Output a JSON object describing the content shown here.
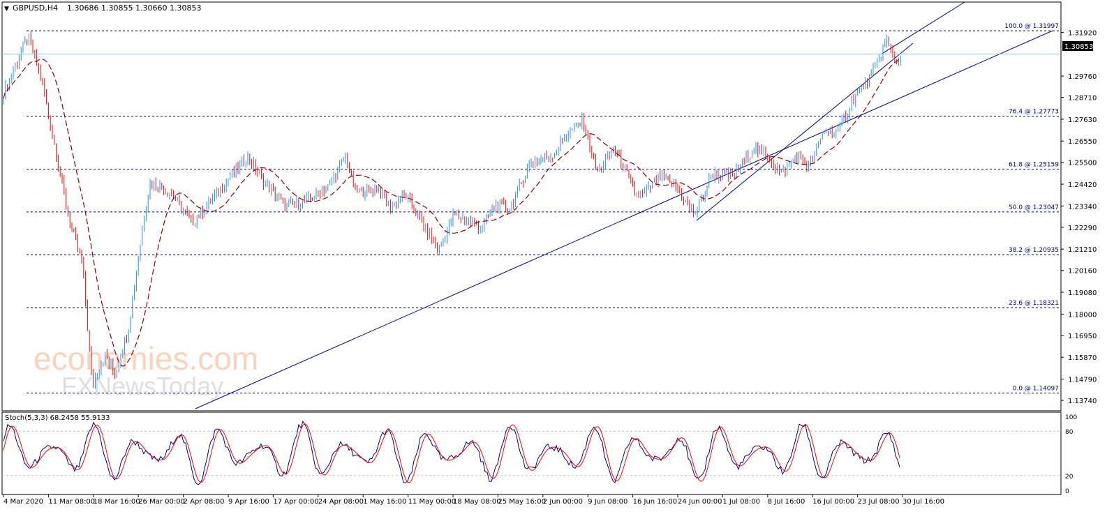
{
  "header": {
    "symbol": "GBPUSD,H4",
    "quote": "1.30686 1.30855 1.30660 1.30853"
  },
  "indicator": {
    "label": "Stoch(5,3,3) 68.2458 55.9133",
    "levels": [
      "100",
      "80",
      "20",
      "0"
    ]
  },
  "watermark": {
    "line1": "economies.com",
    "line2": "FXNewsToday"
  },
  "colors": {
    "background": "#ffffff",
    "bull": "#1f8fff",
    "bear": "#ff0000",
    "ma": "#8b0000",
    "channel": "#000080",
    "fib": "#000080",
    "price_line": "#87ceeb",
    "stoch_main": "#000080",
    "stoch_signal": "#ff0000",
    "text": "#000000"
  },
  "chart_data": [
    {
      "type": "candlestick",
      "symbol": "GBPUSD",
      "timeframe": "H4",
      "y_axis": {
        "min": 1.1374,
        "max": 1.3245,
        "ticks": [
          "1.31920",
          "1.30853",
          "1.29760",
          "1.28710",
          "1.27630",
          "1.26550",
          "1.25500",
          "1.24420",
          "1.23340",
          "1.22290",
          "1.21210",
          "1.20160",
          "1.19080",
          "1.18000",
          "1.16950",
          "1.15870",
          "1.14790",
          "1.13740"
        ]
      },
      "current_price": "1.30853",
      "x_labels": [
        "4 Mar 2020",
        "11 Mar 08:00",
        "18 Mar 16:00",
        "26 Mar 00:00",
        "2 Apr 08:00",
        "9 Apr 16:00",
        "17 Apr 00:00",
        "24 Apr 08:00",
        "1 May 16:00",
        "11 May 00:00",
        "18 May 08:00",
        "25 May 16:00",
        "2 Jun 00:00",
        "9 Jun 08:00",
        "16 Jun 16:00",
        "24 Jun 00:00",
        "1 Jul 08:00",
        "8 Jul 16:00",
        "16 Jul 00:00",
        "23 Jul 08:00",
        "30 Jul 16:00"
      ],
      "fibonacci": [
        {
          "label": "100.0 @ 1.31997",
          "level": 1.31997
        },
        {
          "label": "76.4 @ 1.27773",
          "level": 1.27773
        },
        {
          "label": "61.8 @ 1.25159",
          "level": 1.25159
        },
        {
          "label": "50.0 @ 1.23047",
          "level": 1.23047
        },
        {
          "label": "38.2 @ 1.20935",
          "level": 1.20935
        },
        {
          "label": "23.6 @ 1.18321",
          "level": 1.18321
        },
        {
          "label": "0.0 @ 1.14097",
          "level": 1.14097
        }
      ],
      "anchors": [
        {
          "x": 0,
          "close": 1.285
        },
        {
          "x": 40,
          "close": 1.3175
        },
        {
          "x": 60,
          "close": 1.295
        },
        {
          "x": 80,
          "close": 1.26
        },
        {
          "x": 100,
          "close": 1.225
        },
        {
          "x": 118,
          "close": 1.205
        },
        {
          "x": 132,
          "close": 1.145
        },
        {
          "x": 150,
          "close": 1.16
        },
        {
          "x": 165,
          "close": 1.15
        },
        {
          "x": 185,
          "close": 1.175
        },
        {
          "x": 205,
          "close": 1.225
        },
        {
          "x": 215,
          "close": 1.245
        },
        {
          "x": 245,
          "close": 1.24
        },
        {
          "x": 275,
          "close": 1.225
        },
        {
          "x": 300,
          "close": 1.235
        },
        {
          "x": 330,
          "close": 1.248
        },
        {
          "x": 355,
          "close": 1.258
        },
        {
          "x": 375,
          "close": 1.247
        },
        {
          "x": 410,
          "close": 1.233
        },
        {
          "x": 440,
          "close": 1.236
        },
        {
          "x": 470,
          "close": 1.243
        },
        {
          "x": 495,
          "close": 1.258
        },
        {
          "x": 510,
          "close": 1.24
        },
        {
          "x": 540,
          "close": 1.242
        },
        {
          "x": 560,
          "close": 1.233
        },
        {
          "x": 580,
          "close": 1.239
        },
        {
          "x": 600,
          "close": 1.228
        },
        {
          "x": 628,
          "close": 1.211
        },
        {
          "x": 650,
          "close": 1.229
        },
        {
          "x": 690,
          "close": 1.223
        },
        {
          "x": 710,
          "close": 1.234
        },
        {
          "x": 730,
          "close": 1.232
        },
        {
          "x": 760,
          "close": 1.255
        },
        {
          "x": 790,
          "close": 1.258
        },
        {
          "x": 810,
          "close": 1.268
        },
        {
          "x": 835,
          "close": 1.276
        },
        {
          "x": 855,
          "close": 1.25
        },
        {
          "x": 880,
          "close": 1.262
        },
        {
          "x": 910,
          "close": 1.24
        },
        {
          "x": 920,
          "close": 1.238
        },
        {
          "x": 945,
          "close": 1.248
        },
        {
          "x": 970,
          "close": 1.242
        },
        {
          "x": 995,
          "close": 1.229
        },
        {
          "x": 1020,
          "close": 1.249
        },
        {
          "x": 1050,
          "close": 1.248
        },
        {
          "x": 1080,
          "close": 1.262
        },
        {
          "x": 1100,
          "close": 1.258
        },
        {
          "x": 1120,
          "close": 1.249
        },
        {
          "x": 1140,
          "close": 1.258
        },
        {
          "x": 1160,
          "close": 1.253
        },
        {
          "x": 1180,
          "close": 1.27
        },
        {
          "x": 1200,
          "close": 1.27
        },
        {
          "x": 1220,
          "close": 1.285
        },
        {
          "x": 1250,
          "close": 1.299
        },
        {
          "x": 1270,
          "close": 1.315
        },
        {
          "x": 1285,
          "close": 1.304
        },
        {
          "x": 1292,
          "close": 1.30853
        }
      ]
    },
    {
      "type": "line",
      "name": "Stoch(5,3,3)",
      "ylim": [
        0,
        100
      ],
      "last_values": {
        "main": 68.2458,
        "signal": 55.9133
      },
      "levels": [
        80,
        20
      ]
    }
  ]
}
